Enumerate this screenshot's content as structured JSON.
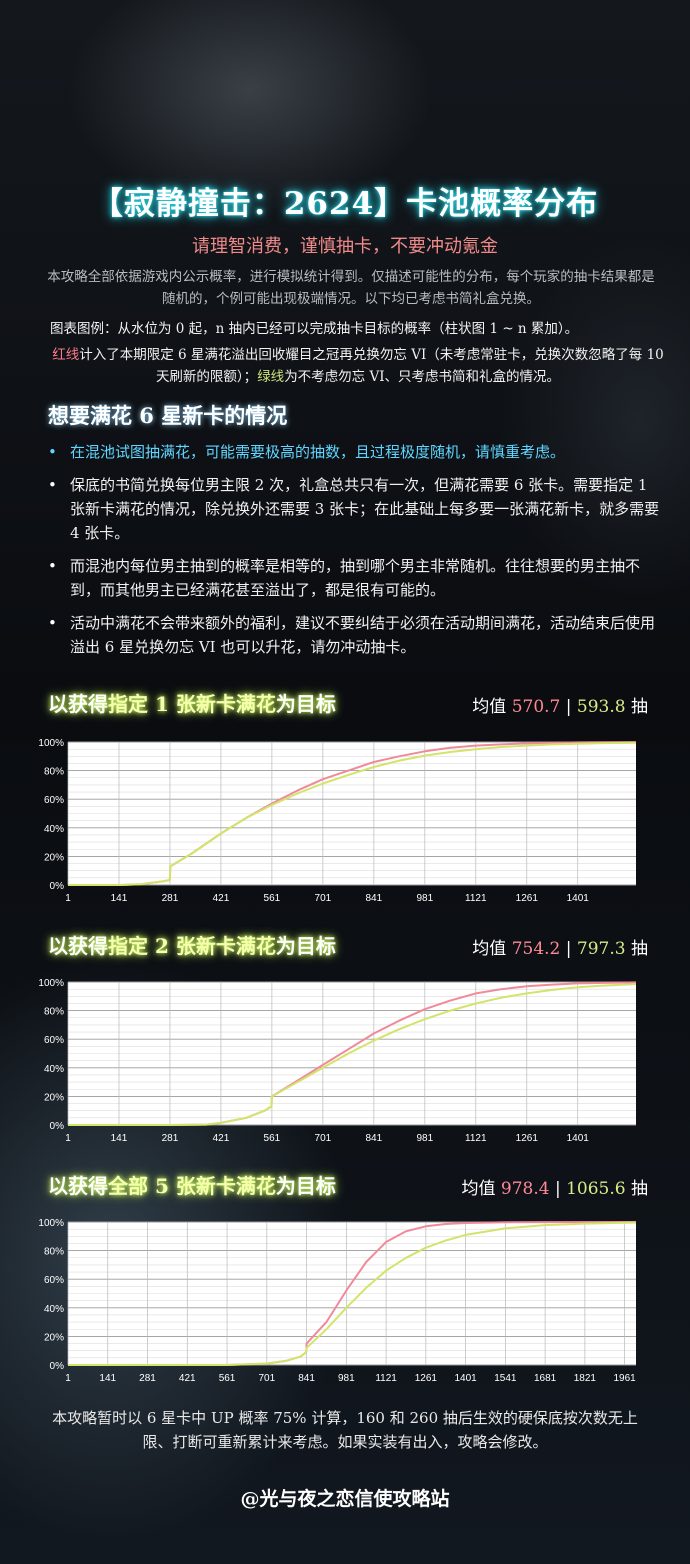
{
  "header": {
    "title": "【寂静撞击：2624】卡池概率分布",
    "subtitle": "请理智消费，谨慎抽卡，不要冲动氪金",
    "intro": "本攻略全部依据游戏内公示概率，进行模拟统计得到。仅描述可能性的分布，每个玩家的抽卡结果都是随机的，个例可能出现极端情况。以下均已考虑书简礼盒兑换。",
    "legend_note": "图表图例：从水位为 0 起，n 抽内已经可以完成抽卡目标的概率（柱状图 1 ~ n 累加）。",
    "red_label": "红线",
    "red_text": "计入了本期限定 6 星满花溢出回收耀目之冠再兑换勿忘 VI（未考虑常驻卡，兑换次数忽略了每 10 天刷新的限额）；",
    "green_label": "绿线",
    "green_text": "为不考虑勿忘 VI、只考虑书简和礼盒的情况。"
  },
  "section": {
    "heading": "想要满花 6 星新卡的情况",
    "bullets": [
      "在混池试图抽满花，可能需要极高的抽数，且过程极度随机，请慎重考虑。",
      "保底的书简兑换每位男主限 2 次，礼盒总共只有一次，但满花需要 6 张卡。需要指定 1 张新卡满花的情况，除兑换外还需要 3 张卡；在此基础上每多要一张满花新卡，就多需要 4 张卡。",
      "而混池内每位男主抽到的概率是相等的，抽到哪个男主非常随机。往往想要的男主抽不到，而其他男主已经满花甚至溢出了，都是很有可能的。",
      "活动中满花不会带来额外的福利，建议不要纠结于必须在活动期间满花，活动结束后使用溢出 6 星兑换勿忘 VI 也可以升花，请勿冲动抽卡。"
    ]
  },
  "colors": {
    "red_line": "#f08a9a",
    "green_line": "#d2e46a",
    "grid": "#cfcfcf",
    "plot_bg": "#ffffff"
  },
  "charts": [
    {
      "title_pre": "以获得",
      "title_hl": "指定 1 张新卡满花",
      "title_post": "为目标",
      "avg_label": "均值",
      "avg_red": "570.7",
      "avg_sep": "|",
      "avg_green": "593.8",
      "avg_unit": "抽"
    },
    {
      "title_pre": "以获得",
      "title_hl": "指定 2 张新卡满花",
      "title_post": "为目标",
      "avg_label": "均值",
      "avg_red": "754.2",
      "avg_sep": "|",
      "avg_green": "797.3",
      "avg_unit": "抽"
    },
    {
      "title_pre": "以获得",
      "title_hl": "全部 5 张新卡满花",
      "title_post": "为目标",
      "avg_label": "均值",
      "avg_red": "978.4",
      "avg_sep": "|",
      "avg_green": "1065.6",
      "avg_unit": "抽"
    }
  ],
  "chart_data": [
    {
      "type": "line",
      "title": "以获得指定 1 张新卡满花为目标",
      "xlim": [
        1,
        1561
      ],
      "ylim": [
        0,
        100
      ],
      "y_ticks": [
        "0%",
        "20%",
        "40%",
        "60%",
        "80%",
        "100%"
      ],
      "x_ticks": [
        "1",
        "141",
        "281",
        "421",
        "561",
        "701",
        "841",
        "981",
        "1121",
        "1261",
        "1401"
      ],
      "grid": true,
      "series": [
        {
          "color": "#f08a9a",
          "x": [
            1,
            141,
            201,
            261,
            281,
            282,
            341,
            421,
            491,
            561,
            631,
            701,
            771,
            841,
            911,
            981,
            1051,
            1121,
            1191,
            1261,
            1331,
            1401,
            1471,
            1561
          ],
          "y": [
            0,
            0,
            0.5,
            2.5,
            3.5,
            13,
            22,
            36,
            47,
            57,
            66,
            74,
            80,
            86,
            90,
            93.5,
            96,
            97.5,
            98.3,
            99,
            99.4,
            99.7,
            99.8,
            99.9
          ]
        },
        {
          "color": "#d2e46a",
          "x": [
            1,
            141,
            201,
            261,
            281,
            282,
            341,
            421,
            491,
            561,
            631,
            701,
            771,
            841,
            911,
            981,
            1051,
            1121,
            1191,
            1261,
            1331,
            1401,
            1471,
            1561
          ],
          "y": [
            0,
            0,
            0.5,
            2.5,
            3.5,
            13,
            22,
            36,
            47,
            56,
            64,
            71,
            77,
            82.5,
            87,
            90.5,
            93,
            95,
            96.5,
            97.5,
            98.3,
            98.8,
            99.2,
            99.5
          ]
        }
      ]
    },
    {
      "type": "line",
      "title": "以获得指定 2 张新卡满花为目标",
      "xlim": [
        1,
        1561
      ],
      "ylim": [
        0,
        100
      ],
      "y_ticks": [
        "0%",
        "20%",
        "40%",
        "60%",
        "80%",
        "100%"
      ],
      "x_ticks": [
        "1",
        "141",
        "281",
        "421",
        "561",
        "701",
        "841",
        "981",
        "1121",
        "1261",
        "1401"
      ],
      "grid": true,
      "series": [
        {
          "color": "#f08a9a",
          "x": [
            1,
            281,
            381,
            421,
            491,
            541,
            560,
            561,
            631,
            701,
            771,
            841,
            911,
            981,
            1051,
            1121,
            1191,
            1261,
            1331,
            1401,
            1471,
            1561
          ],
          "y": [
            0,
            0,
            0.3,
            1.5,
            5,
            10,
            13,
            20,
            31,
            42,
            53,
            64,
            73,
            81,
            87,
            92,
            95,
            97,
            98.2,
            99,
            99.4,
            99.7
          ]
        },
        {
          "color": "#d2e46a",
          "x": [
            1,
            281,
            381,
            421,
            491,
            541,
            560,
            561,
            631,
            701,
            771,
            841,
            911,
            981,
            1051,
            1121,
            1191,
            1261,
            1331,
            1401,
            1471,
            1561
          ],
          "y": [
            0,
            0,
            0.3,
            1.5,
            5,
            10,
            13,
            20,
            30,
            40,
            50,
            59,
            67,
            74,
            80,
            85,
            89,
            92,
            94.5,
            96.3,
            97.5,
            98.5
          ]
        }
      ]
    },
    {
      "type": "line",
      "title": "以获得全部 5 张新卡满花为目标",
      "xlim": [
        1,
        2001
      ],
      "ylim": [
        0,
        100
      ],
      "y_ticks": [
        "0%",
        "20%",
        "40%",
        "60%",
        "80%",
        "100%"
      ],
      "x_ticks": [
        "1",
        "141",
        "281",
        "421",
        "561",
        "701",
        "841",
        "981",
        "1121",
        "1261",
        "1401",
        "1541",
        "1681",
        "1821",
        "1961"
      ],
      "grid": true,
      "series": [
        {
          "color": "#f08a9a",
          "x": [
            1,
            561,
            701,
            771,
            821,
            840,
            841,
            911,
            981,
            1051,
            1121,
            1191,
            1261,
            1331,
            1401,
            1541,
            1681,
            2001
          ],
          "y": [
            0,
            0,
            1,
            3,
            6,
            9,
            15,
            30,
            52,
            72,
            86,
            93.5,
            97,
            98.6,
            99.3,
            99.8,
            99.9,
            100
          ]
        },
        {
          "color": "#d2e46a",
          "x": [
            1,
            561,
            701,
            771,
            821,
            840,
            841,
            911,
            981,
            1051,
            1121,
            1191,
            1261,
            1331,
            1401,
            1541,
            1681,
            1821,
            1961,
            2001
          ],
          "y": [
            0,
            0,
            1,
            3,
            6,
            9,
            12,
            25,
            40,
            54,
            66,
            75,
            82,
            87,
            91,
            95.5,
            97.8,
            98.9,
            99.5,
            99.6
          ]
        }
      ]
    }
  ],
  "footer": {
    "note": "本攻略暂时以 6 星卡中 UP 概率 75% 计算，160 和 260 抽后生效的硬保底按次数无上限、打断可重新累计来考虑。如果实装有出入，攻略会修改。",
    "credit": "@光与夜之恋信使攻略站"
  }
}
